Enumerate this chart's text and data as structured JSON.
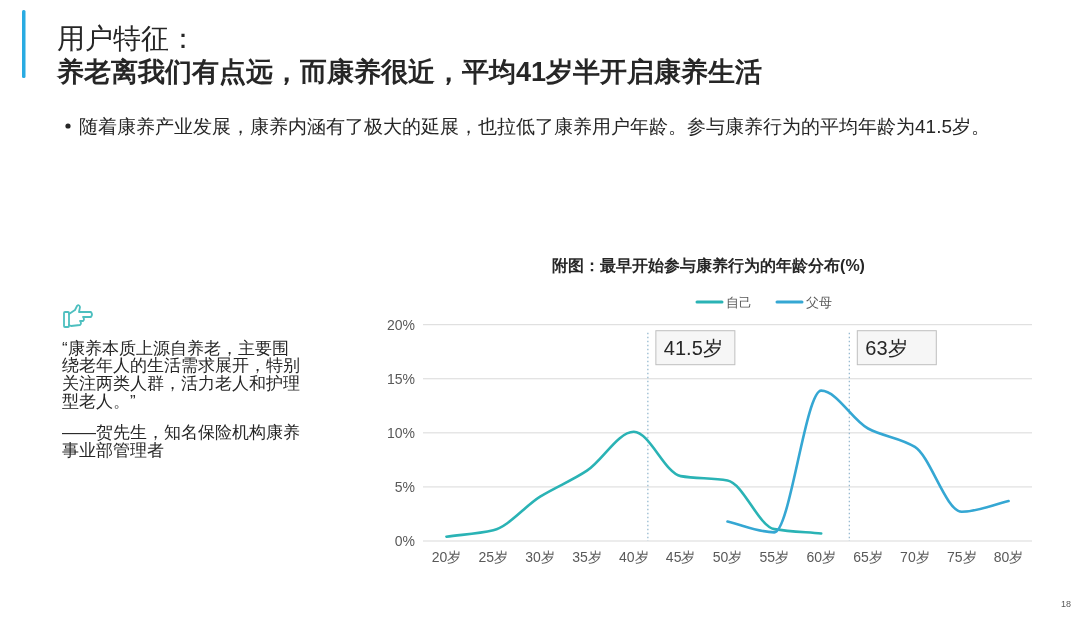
{
  "chart_data": {
    "type": "line",
    "title": "附图：最早开始参与康养行为的年龄分布(%)",
    "x": [
      20,
      25,
      30,
      35,
      40,
      45,
      50,
      55,
      60,
      65,
      70,
      75,
      80
    ],
    "series": [
      {
        "name": "自己",
        "color": "#2ab3b5",
        "values": [
          0.4,
          1.0,
          4.1,
          6.5,
          10.1,
          6.0,
          5.6,
          1.1,
          0.7,
          null,
          null,
          null,
          null
        ]
      },
      {
        "name": "父母",
        "color": "#35a7d3",
        "values": [
          null,
          null,
          null,
          null,
          null,
          null,
          1.8,
          0.8,
          13.9,
          10.4,
          8.7,
          2.7,
          3.7
        ]
      }
    ],
    "xlim": [
      17.5,
      82.5
    ],
    "xticks": [
      {
        "value": 20,
        "label": "20岁"
      },
      {
        "value": 25,
        "label": "25岁"
      },
      {
        "value": 30,
        "label": "30岁"
      },
      {
        "value": 35,
        "label": "35岁"
      },
      {
        "value": 40,
        "label": "40岁"
      },
      {
        "value": 45,
        "label": "45岁"
      },
      {
        "value": 50,
        "label": "50岁"
      },
      {
        "value": 55,
        "label": "55岁"
      },
      {
        "value": 60,
        "label": "60岁"
      },
      {
        "value": 65,
        "label": "65岁"
      },
      {
        "value": 70,
        "label": "70岁"
      },
      {
        "value": 75,
        "label": "75岁"
      },
      {
        "value": 80,
        "label": "80岁"
      }
    ],
    "ylim": [
      0,
      20
    ],
    "yticks": [
      {
        "value": 0,
        "label": "0%"
      },
      {
        "value": 5,
        "label": "5%"
      },
      {
        "value": 10,
        "label": "10%"
      },
      {
        "value": 15,
        "label": "15%"
      },
      {
        "value": 20,
        "label": "20%"
      }
    ],
    "grid": "y",
    "legend": "top",
    "marker": "none",
    "line_style": "solid",
    "ref_lines": [
      {
        "axis": "x",
        "value": 41.5,
        "label": "41.5岁",
        "color": "#8eb4cc",
        "line_style": "dotted"
      },
      {
        "axis": "x",
        "value": 63,
        "label": "63岁",
        "color": "#8eb4cc",
        "line_style": "dotted"
      }
    ],
    "annotations": [
      "用户特征：",
      "养老离我们有点远，而康养很近，平均41岁半开启康养生活",
      "随着康养产业发展，康养内涵有了极大的延展，也拉低了康养用户年龄。参与康养行为的平均年龄为41.5岁。",
      "“康养本质上源自养老，主要围绕老年人的生活需求展开，特别关注两类人群，活力老人和护理型老人。”",
      "——贺先生，知名保险机构康养事业部管理者",
      "18"
    ]
  }
}
